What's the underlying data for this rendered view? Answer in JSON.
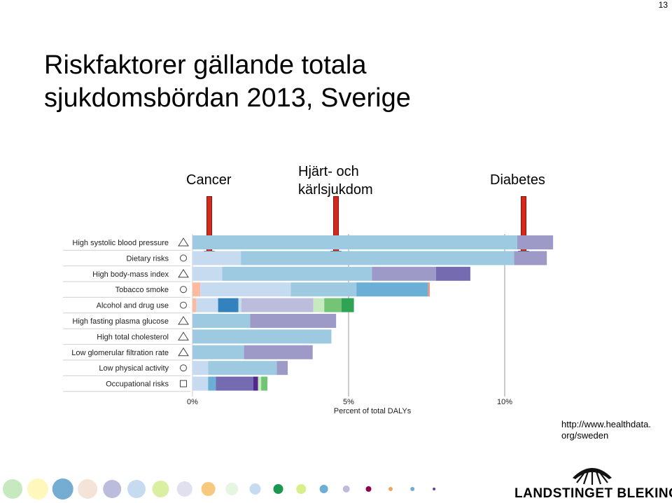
{
  "page_number": "13",
  "title_line1": "Riskfaktorer gällande totala",
  "title_line2": "sjukdomsbördan 2013, Sverige",
  "labels": {
    "cancer": "Cancer",
    "cvd_line1": "Hjärt- och",
    "cvd_line2": "kärlsjukdom",
    "diabetes": "Diabetes"
  },
  "url_line1": "http://www.healthdata.",
  "url_line2": "org/sweden",
  "logo_text": "LANDSTINGET BLEKINGE",
  "chart_data": {
    "type": "bar",
    "orientation": "horizontal-stacked",
    "xlabel": "Percent of total DALYs",
    "xticks": [
      "0%",
      "5%",
      "10%"
    ],
    "xlim": [
      0,
      11.5
    ],
    "categories": [
      "High systolic blood pressure",
      "Dietary risks",
      "High body-mass index",
      "Tobacco smoke",
      "Alcohol and drug use",
      "High fasting plasma glucose",
      "High total cholesterol",
      "Low glomerular filtration rate",
      "Low physical activity",
      "Occupational risks"
    ],
    "symbols": [
      "triangle",
      "circle",
      "triangle",
      "circle",
      "circle",
      "triangle",
      "triangle",
      "triangle",
      "circle",
      "square"
    ],
    "segments": [
      [
        {
          "v": 10.4,
          "c": "#9ecae1"
        },
        {
          "v": 1.15,
          "c": "#9e9ac8"
        }
      ],
      [
        {
          "v": 1.55,
          "c": "#c6dbef"
        },
        {
          "v": 8.75,
          "c": "#9ecae1"
        },
        {
          "v": 1.05,
          "c": "#9e9ac8"
        }
      ],
      [
        {
          "v": 0.95,
          "c": "#c6dbef"
        },
        {
          "v": 4.8,
          "c": "#9ecae1"
        },
        {
          "v": 2.05,
          "c": "#9e9ac8"
        },
        {
          "v": 1.1,
          "c": "#756bb1"
        }
      ],
      [
        {
          "v": 0.25,
          "c": "#fcbba1"
        },
        {
          "v": 2.9,
          "c": "#c6dbef"
        },
        {
          "v": 2.1,
          "c": "#9ecae1"
        },
        {
          "v": 2.3,
          "c": "#6baed6"
        },
        {
          "v": 0.05,
          "c": "#fc9272"
        }
      ],
      [
        {
          "v": 0.12,
          "c": "#fcbba1"
        },
        {
          "v": 0.7,
          "c": "#c6dbef"
        },
        {
          "v": 0.65,
          "c": "#3182bd"
        },
        {
          "v": 0.1,
          "c": "#c6dbef"
        },
        {
          "v": 2.3,
          "c": "#bcbddc"
        },
        {
          "v": 0.35,
          "c": "#c7e9c0"
        },
        {
          "v": 0.55,
          "c": "#74c476"
        },
        {
          "v": 0.4,
          "c": "#31a354"
        }
      ],
      [
        {
          "v": 1.85,
          "c": "#9ecae1"
        },
        {
          "v": 2.75,
          "c": "#9e9ac8"
        }
      ],
      [
        {
          "v": 4.45,
          "c": "#9ecae1"
        }
      ],
      [
        {
          "v": 1.65,
          "c": "#9ecae1"
        },
        {
          "v": 2.2,
          "c": "#9e9ac8"
        }
      ],
      [
        {
          "v": 0.5,
          "c": "#c6dbef"
        },
        {
          "v": 2.2,
          "c": "#9ecae1"
        },
        {
          "v": 0.35,
          "c": "#9e9ac8"
        }
      ],
      [
        {
          "v": 0.5,
          "c": "#c6dbef"
        },
        {
          "v": 0.25,
          "c": "#6baed6"
        },
        {
          "v": 1.2,
          "c": "#756bb1"
        },
        {
          "v": 0.15,
          "c": "#54278f"
        },
        {
          "v": 0.1,
          "c": "#c7e9c0"
        },
        {
          "v": 0.2,
          "c": "#74c476"
        }
      ]
    ],
    "grid": true
  },
  "colors": {
    "arrow": "#d42a1c",
    "dots": [
      "#c7e9c0",
      "#fff7bc",
      "#74add1",
      "#f4e3d7",
      "#bcbddc",
      "#c6dbef",
      "#d9f0a3",
      "#e0e0ef",
      "#f7c97f",
      "#e5f5e0",
      "#c6dbef",
      "#1a9850",
      "#d9ef8b",
      "#6baed6",
      "#bcbddc",
      "#8e0152",
      "#f4a460",
      "#74add1",
      "#6a3d9a"
    ]
  }
}
